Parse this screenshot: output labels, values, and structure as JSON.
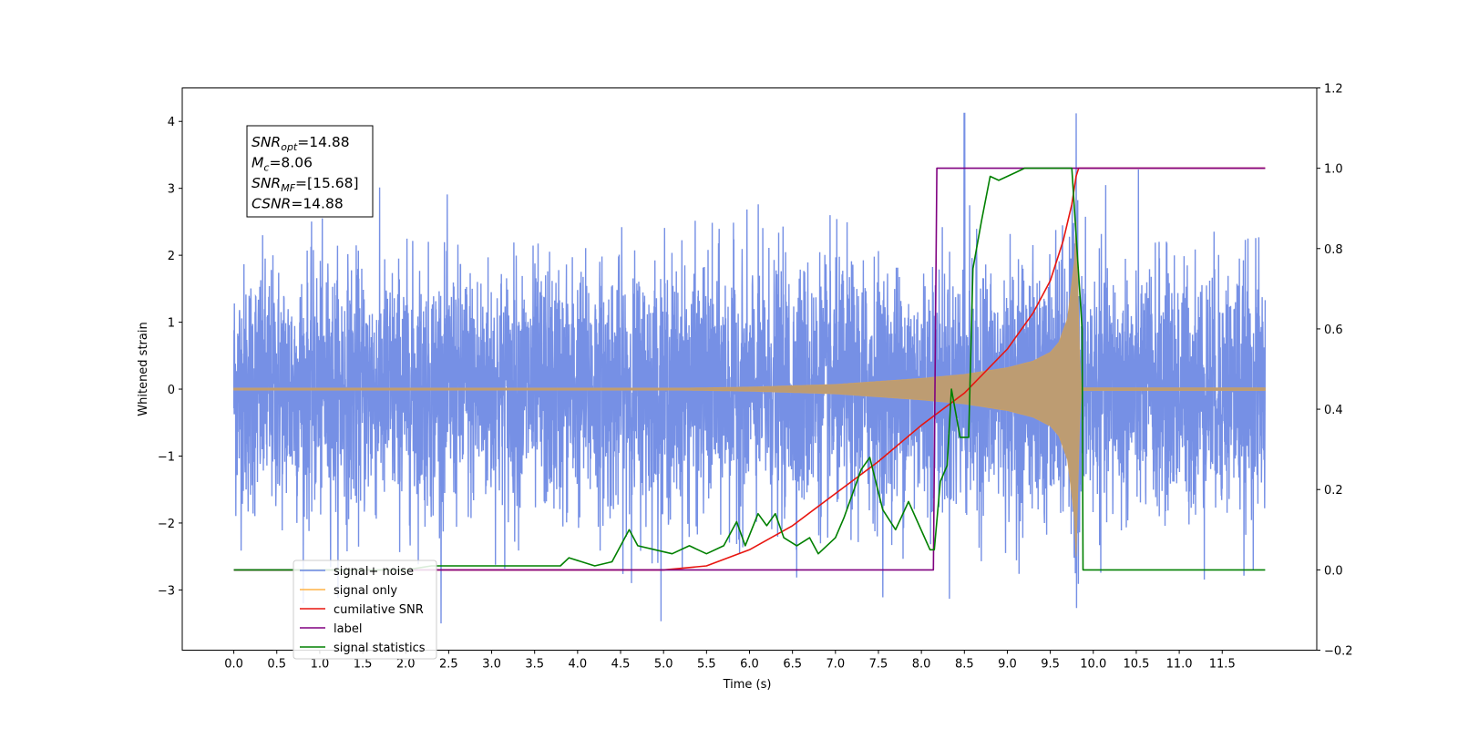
{
  "chart_data": {
    "type": "line",
    "xlabel": "Time (s)",
    "ylabel": "Whitened strain",
    "xlim": [
      -0.6,
      12.6
    ],
    "ylim": [
      -3.9,
      4.5
    ],
    "y2lim": [
      -0.2,
      1.2
    ],
    "grid": false,
    "legend_position": "lower-left",
    "x_ticks": [
      "0.0",
      "0.5",
      "1.0",
      "1.5",
      "2.0",
      "2.5",
      "3.0",
      "3.5",
      "4.0",
      "4.5",
      "5.0",
      "5.5",
      "6.0",
      "6.5",
      "7.0",
      "7.5",
      "8.0",
      "8.5",
      "9.0",
      "9.5",
      "10.0",
      "10.5",
      "11.0",
      "11.5"
    ],
    "y_ticks": [
      "−3",
      "−2",
      "−1",
      "0",
      "1",
      "2",
      "3",
      "4"
    ],
    "y2_ticks": [
      "−0.2",
      "0.0",
      "0.2",
      "0.4",
      "0.6",
      "0.8",
      "1.0",
      "1.2"
    ],
    "annotation": {
      "lines": [
        {
          "base": "SNR",
          "sub": "opt",
          "value": "=14.88"
        },
        {
          "base": "M",
          "sub": "c",
          "value": "=8.06"
        },
        {
          "base": "SNR",
          "sub": "MF",
          "value": "=[15.68]"
        },
        {
          "base": "CSNR",
          "sub": "",
          "value": "=14.88"
        }
      ]
    },
    "series": [
      {
        "name": "signal+ noise",
        "color": "#6a87e3",
        "axis": "left",
        "style": "noise",
        "description_points": {
          "t": [
            0.0,
            12.0
          ],
          "max_abs_value": 4.12,
          "peak_time": 8.5
        }
      },
      {
        "name": "signal only",
        "color": "#ffb347",
        "axis": "left",
        "style": "chirp",
        "envelope": {
          "t": [
            0.0,
            5.0,
            6.0,
            7.0,
            8.0,
            8.5,
            9.0,
            9.3,
            9.5,
            9.6,
            9.7,
            9.78,
            9.8,
            9.85,
            12.0
          ],
          "amp": [
            0.0,
            0.01,
            0.03,
            0.07,
            0.16,
            0.22,
            0.32,
            0.42,
            0.55,
            0.7,
            1.05,
            1.9,
            2.5,
            0.02,
            0.02
          ]
        }
      },
      {
        "name": "cumilative SNR",
        "color": "#e8150f",
        "axis": "right",
        "x": [
          0.0,
          5.0,
          5.5,
          6.0,
          6.5,
          7.0,
          7.5,
          8.0,
          8.5,
          9.0,
          9.3,
          9.5,
          9.65,
          9.75,
          9.8,
          9.83,
          12.0
        ],
        "y": [
          0.0,
          0.0,
          0.01,
          0.05,
          0.11,
          0.19,
          0.27,
          0.36,
          0.44,
          0.55,
          0.64,
          0.72,
          0.82,
          0.91,
          0.98,
          1.0,
          1.0
        ]
      },
      {
        "name": "label",
        "color": "#800080",
        "axis": "right",
        "x": [
          0.0,
          8.14,
          8.18,
          9.82,
          9.82,
          12.0
        ],
        "y": [
          0.0,
          0.0,
          1.0,
          1.0,
          1.0,
          1.0
        ]
      },
      {
        "name": "signal statistics",
        "color": "#008000",
        "axis": "right",
        "x": [
          0.0,
          2.0,
          2.3,
          2.5,
          2.8,
          3.0,
          3.3,
          3.5,
          3.8,
          3.9,
          4.2,
          4.4,
          4.6,
          4.7,
          4.9,
          5.1,
          5.3,
          5.5,
          5.7,
          5.85,
          5.95,
          6.1,
          6.2,
          6.3,
          6.4,
          6.55,
          6.7,
          6.8,
          7.0,
          7.1,
          7.3,
          7.4,
          7.55,
          7.7,
          7.85,
          8.1,
          8.15,
          8.22,
          8.3,
          8.35,
          8.45,
          8.55,
          8.6,
          8.7,
          8.8,
          8.9,
          9.0,
          9.1,
          9.2,
          9.5,
          9.75,
          9.87,
          9.88,
          12.0
        ],
        "y": [
          0.0,
          0.0,
          0.01,
          0.01,
          0.01,
          0.01,
          0.01,
          0.01,
          0.01,
          0.03,
          0.01,
          0.02,
          0.1,
          0.06,
          0.05,
          0.04,
          0.06,
          0.04,
          0.06,
          0.12,
          0.06,
          0.14,
          0.11,
          0.14,
          0.08,
          0.06,
          0.08,
          0.04,
          0.08,
          0.13,
          0.25,
          0.28,
          0.15,
          0.1,
          0.17,
          0.05,
          0.05,
          0.22,
          0.26,
          0.45,
          0.33,
          0.33,
          0.75,
          0.87,
          0.98,
          0.97,
          0.98,
          0.99,
          1.0,
          1.0,
          1.0,
          0.6,
          0.0,
          0.0
        ]
      }
    ]
  }
}
